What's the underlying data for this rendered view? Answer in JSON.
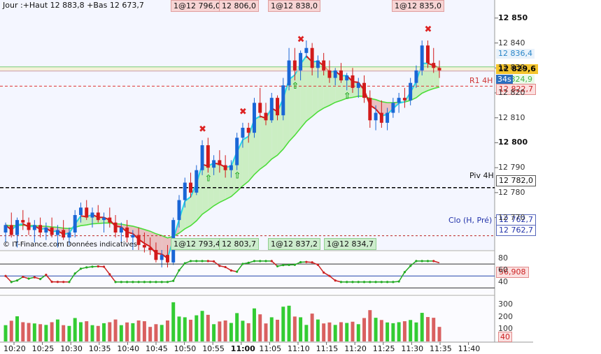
{
  "header": {
    "text": "Jour :+Haut 12 883,8 +Bas 12 673,7"
  },
  "watermark": {
    "text": "IT-Finance.com Données indicatives"
  },
  "top_annotations": [
    {
      "text": "1@12 796,0",
      "left": 244
    },
    {
      "text": "12 806,0",
      "left": 313
    },
    {
      "text": "1@12 838,0",
      "left": 383
    },
    {
      "text": "1@12 835,0",
      "left": 560
    }
  ],
  "bottom_annotations": [
    {
      "text": "1@12 793,4",
      "left": 244
    },
    {
      "text": "12 803,7",
      "left": 313
    },
    {
      "text": "1@12 837,2",
      "left": 383
    },
    {
      "text": "1@12 834,7",
      "left": 463
    }
  ],
  "levels": {
    "r1_label": "R1 4H",
    "piv_label": "Piv 4H",
    "clo_label": "Clo (H, Pré)",
    "timer": "34s"
  },
  "price_tags": {
    "upper_band": "12 836,4",
    "last": "12 829,6",
    "lower_band": "12 824,9",
    "r1": "12 822,7",
    "piv": "12 782,0",
    "clo1": "12 762,7",
    "clo2": "12 762,7"
  },
  "colors": {
    "up": "#1a66d6",
    "down": "#d21a1a",
    "ema_fast": "#27d6e6",
    "ema_slow": "#4ddd3a",
    "vol_up": "#33cc33",
    "vol_down": "#d96060"
  },
  "chart_data": {
    "type": "candlestick",
    "price_axis": {
      "range": [
        12757,
        12855
      ],
      "ticks": [
        12850,
        12840,
        12830,
        12820,
        12810,
        12800,
        12790,
        12780,
        12770
      ]
    },
    "rsi": {
      "value": "56,908",
      "ticks": [
        80,
        60,
        40
      ],
      "levels": [
        70,
        50,
        30
      ]
    },
    "volume": {
      "ticks": [
        300,
        200,
        100,
        40
      ]
    },
    "x_labels": [
      "10:20",
      "10:25",
      "10:30",
      "10:35",
      "10:40",
      "10:45",
      "10:50",
      "10:55",
      "11:00",
      "11:05",
      "11:10",
      "11:15",
      "11:20",
      "11:25",
      "11:30",
      "11:35",
      "11:40"
    ],
    "candles": [
      [
        12764,
        12768,
        12760,
        12767
      ],
      [
        12767,
        12772,
        12762,
        12763
      ],
      [
        12763,
        12770,
        12758,
        12769
      ],
      [
        12769,
        12773,
        12765,
        12768
      ],
      [
        12768,
        12770,
        12763,
        12765
      ],
      [
        12765,
        12769,
        12760,
        12767
      ],
      [
        12767,
        12770,
        12762,
        12764
      ],
      [
        12764,
        12768,
        12761,
        12766
      ],
      [
        12766,
        12770,
        12762,
        12763
      ],
      [
        12763,
        12767,
        12758,
        12765
      ],
      [
        12765,
        12769,
        12761,
        12762
      ],
      [
        12762,
        12766,
        12759,
        12764
      ],
      [
        12764,
        12773,
        12762,
        12771
      ],
      [
        12771,
        12776,
        12768,
        12774
      ],
      [
        12774,
        12777,
        12769,
        12770
      ],
      [
        12770,
        12774,
        12766,
        12772
      ],
      [
        12772,
        12775,
        12768,
        12769
      ],
      [
        12769,
        12772,
        12764,
        12770
      ],
      [
        12770,
        12774,
        12766,
        12768
      ],
      [
        12768,
        12771,
        12762,
        12764
      ],
      [
        12764,
        12768,
        12760,
        12766
      ],
      [
        12766,
        12769,
        12760,
        12762
      ],
      [
        12762,
        12765,
        12757,
        12763
      ],
      [
        12763,
        12766,
        12757,
        12759
      ],
      [
        12759,
        12764,
        12756,
        12758
      ],
      [
        12758,
        12762,
        12755,
        12757
      ],
      [
        12757,
        12760,
        12752,
        12753
      ],
      [
        12753,
        12757,
        12750,
        12755
      ],
      [
        12755,
        12759,
        12750,
        12752
      ],
      [
        12752,
        12770,
        12751,
        12769
      ],
      [
        12769,
        12779,
        12766,
        12777
      ],
      [
        12777,
        12786,
        12774,
        12784
      ],
      [
        12784,
        12788,
        12778,
        12780
      ],
      [
        12780,
        12791,
        12779,
        12789
      ],
      [
        12789,
        12801,
        12787,
        12799
      ],
      [
        12799,
        12802,
        12788,
        12790
      ],
      [
        12790,
        12795,
        12787,
        12793
      ],
      [
        12793,
        12797,
        12788,
        12791
      ],
      [
        12791,
        12795,
        12786,
        12789
      ],
      [
        12789,
        12793,
        12786,
        12791
      ],
      [
        12791,
        12804,
        12789,
        12802
      ],
      [
        12802,
        12808,
        12798,
        12806
      ],
      [
        12806,
        12808,
        12800,
        12804
      ],
      [
        12804,
        12818,
        12802,
        12816
      ],
      [
        12816,
        12822,
        12810,
        12812
      ],
      [
        12812,
        12816,
        12807,
        12809
      ],
      [
        12809,
        12820,
        12808,
        12818
      ],
      [
        12818,
        12819,
        12809,
        12811
      ],
      [
        12811,
        12826,
        12809,
        12823
      ],
      [
        12823,
        12838,
        12821,
        12833
      ],
      [
        12833,
        12838,
        12825,
        12829
      ],
      [
        12829,
        12837,
        12825,
        12836
      ],
      [
        12836,
        12841,
        12834,
        12838
      ],
      [
        12838,
        12840,
        12827,
        12830
      ],
      [
        12830,
        12835,
        12826,
        12833
      ],
      [
        12833,
        12836,
        12827,
        12829
      ],
      [
        12829,
        12833,
        12824,
        12826
      ],
      [
        12826,
        12830,
        12823,
        12829
      ],
      [
        12829,
        12832,
        12824,
        12825
      ],
      [
        12825,
        12828,
        12821,
        12827
      ],
      [
        12827,
        12830,
        12820,
        12822
      ],
      [
        12822,
        12826,
        12818,
        12824
      ],
      [
        12824,
        12827,
        12816,
        12818
      ],
      [
        12818,
        12821,
        12806,
        12809
      ],
      [
        12809,
        12815,
        12805,
        12812
      ],
      [
        12812,
        12817,
        12806,
        12808
      ],
      [
        12808,
        12814,
        12805,
        12812
      ],
      [
        12812,
        12818,
        12810,
        12816
      ],
      [
        12816,
        12820,
        12812,
        12818
      ],
      [
        12818,
        12822,
        12814,
        12817
      ],
      [
        12817,
        12826,
        12815,
        12824
      ],
      [
        12824,
        12831,
        12822,
        12829
      ],
      [
        12829,
        12841,
        12827,
        12839
      ],
      [
        12839,
        12841,
        12830,
        12832
      ],
      [
        12832,
        12838,
        12828,
        12830
      ],
      [
        12830,
        12833,
        12826,
        12829
      ]
    ]
  }
}
